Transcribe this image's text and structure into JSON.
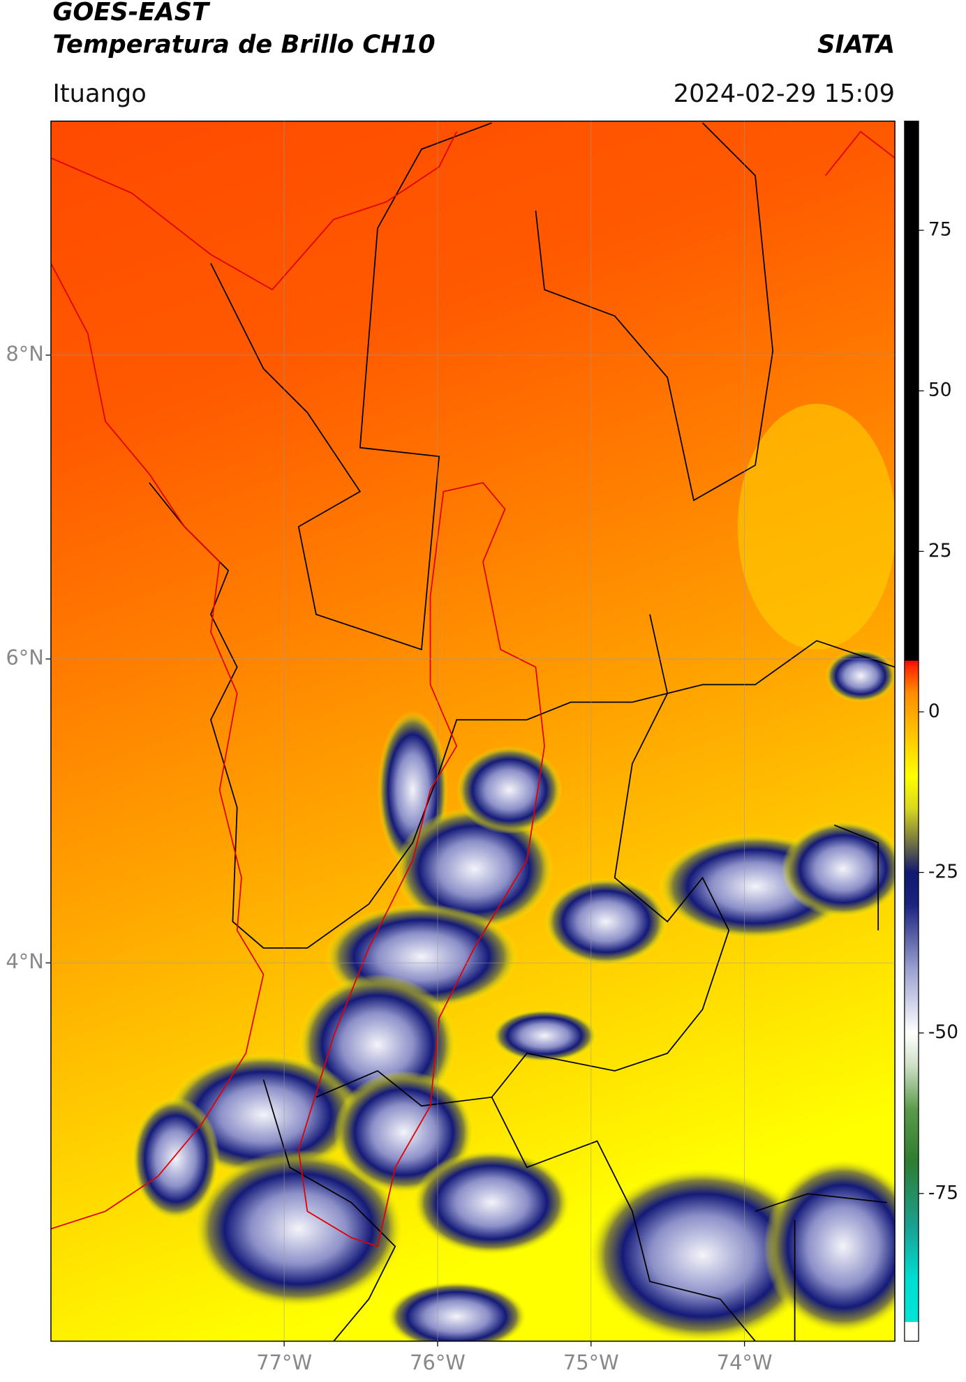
{
  "header": {
    "title": "GOES-EAST",
    "subtitle": "Temperatura de Brillo CH10",
    "brand": "SIATA",
    "location": "Ituango",
    "datetime": "2024-02-29 15:09"
  },
  "map": {
    "xlim": [
      -78.52,
      -73.02
    ],
    "ylim": [
      1.51,
      9.54
    ],
    "xticks": [
      {
        "value": -77,
        "label": "77°W"
      },
      {
        "value": -76,
        "label": "76°W"
      },
      {
        "value": -75,
        "label": "75°W"
      },
      {
        "value": -74,
        "label": "74°W"
      }
    ],
    "yticks": [
      {
        "value": 8,
        "label": "8°N"
      },
      {
        "value": 6,
        "label": "6°N"
      },
      {
        "value": 4,
        "label": "4°N"
      }
    ],
    "grid": true
  },
  "colorbar": {
    "lim": [
      -98,
      92
    ],
    "ticks": [
      75,
      50,
      25,
      0,
      -25,
      -50,
      -75
    ],
    "stops": [
      [
        -98,
        "#ffffff"
      ],
      [
        -95,
        "#ffffff"
      ],
      [
        -95,
        "#00e5d8"
      ],
      [
        -88,
        "#00dcd0"
      ],
      [
        -80,
        "#1aa090"
      ],
      [
        -70,
        "#2e7d32"
      ],
      [
        -62,
        "#5a9a4a"
      ],
      [
        -55,
        "#cfe0c8"
      ],
      [
        -50,
        "#ffffff"
      ],
      [
        -40,
        "#9aa0d0"
      ],
      [
        -30,
        "#1a237e"
      ],
      [
        -25,
        "#101870"
      ],
      [
        -20,
        "#7a7a40"
      ],
      [
        -15,
        "#d8d820"
      ],
      [
        -10,
        "#ffff00"
      ],
      [
        -3,
        "#ffc000"
      ],
      [
        3,
        "#ff8c00"
      ],
      [
        7,
        "#ff2a00"
      ],
      [
        8,
        "#ff0000"
      ],
      [
        8,
        "#000000"
      ],
      [
        92,
        "#000000"
      ]
    ]
  }
}
